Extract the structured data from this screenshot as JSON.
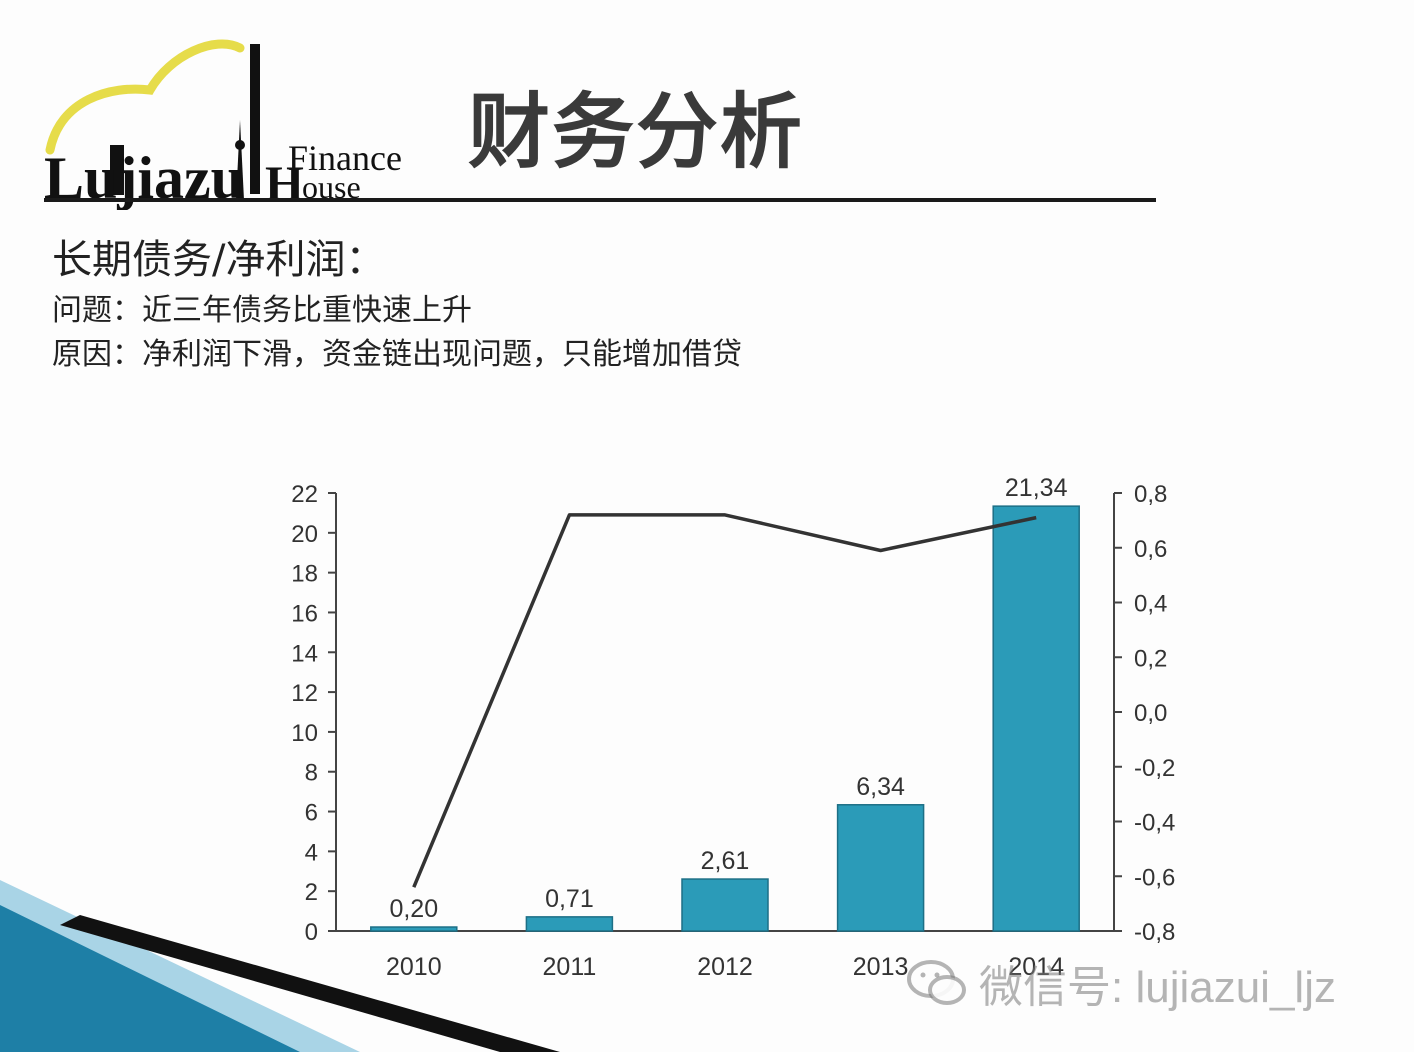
{
  "slide": {
    "title": "财务分析",
    "heading": "长期债务/净利润：",
    "problem": "问题：近三年债务比重快速上升",
    "cause": "原因：净利润下滑，资金链出现问题，只能增加借贷"
  },
  "logo": {
    "brand_part1": "Lujiazu",
    "brand_part2": "Finance",
    "brand_part3": "ouse"
  },
  "watermark": {
    "text": "微信号: lujiazui_ljz",
    "icon": "wechat-icon"
  },
  "colors": {
    "bar": "#2b9bb8",
    "bar_edge": "#1d6f86",
    "line": "#333333",
    "accent_stripe": "#1e7fa6",
    "sun": "#e6dc4a"
  },
  "chart_data": {
    "type": "bar",
    "categories": [
      "2010",
      "2011",
      "2012",
      "2013",
      "2014"
    ],
    "series": [
      {
        "type": "bar",
        "axis": "left",
        "values": [
          0.2,
          0.71,
          2.61,
          6.34,
          21.34
        ]
      },
      {
        "type": "line",
        "axis": "right",
        "values": [
          -0.64,
          0.72,
          0.72,
          0.59,
          0.71
        ]
      }
    ],
    "data_labels": [
      "0,20",
      "0,71",
      "2,61",
      "6,34",
      "21,34"
    ],
    "y_left": {
      "min": 0,
      "max": 22,
      "ticks": [
        "0",
        "2",
        "4",
        "6",
        "8",
        "10",
        "12",
        "14",
        "16",
        "18",
        "20",
        "22"
      ]
    },
    "y_right": {
      "min": -0.8,
      "max": 0.8,
      "ticks": [
        "-0,8",
        "-0,6",
        "-0,4",
        "-0,2",
        "0,0",
        "0,2",
        "0,4",
        "0,6",
        "0,8"
      ]
    },
    "grid": false,
    "legend": "none"
  }
}
